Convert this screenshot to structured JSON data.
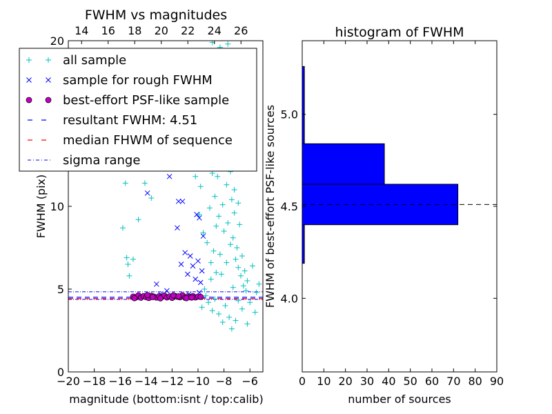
{
  "chart_data": [
    {
      "type": "scatter",
      "title": "FWHM vs magnitudes",
      "xlabel": "magnitude (bottom:isnt / top:calib)",
      "ylabel": "FWHM (pix)",
      "xlim": [
        -20,
        -5
      ],
      "ylim": [
        0,
        20
      ],
      "top_xlim": [
        13.0,
        27.65
      ],
      "xticks": [
        -20,
        -18,
        -16,
        -14,
        -12,
        -10,
        -8,
        -6
      ],
      "xtick_labels": [
        "−20",
        "−18",
        "−16",
        "−14",
        "−12",
        "−10",
        "−8",
        "−6"
      ],
      "yticks": [
        0,
        5,
        10,
        15,
        20
      ],
      "ytick_labels": [
        "0",
        "5",
        "10",
        "15",
        "20"
      ],
      "top_xticks": [
        14,
        16,
        18,
        20,
        22,
        24,
        26
      ],
      "top_xtick_labels": [
        "14",
        "16",
        "18",
        "20",
        "22",
        "24",
        "26"
      ],
      "grid": false,
      "legend_position": "top-left",
      "legend": [
        {
          "label": "all sample",
          "marker": "+",
          "color": "#00bfbf"
        },
        {
          "label": "sample for rough FWHM",
          "marker": "x",
          "color": "#0000ff"
        },
        {
          "label": "best-effort PSF-like sample",
          "marker": "o",
          "color": "#bf00bf"
        },
        {
          "label": "resultant FWHM: 4.51",
          "marker": "dashed",
          "color": "#0000ff"
        },
        {
          "label": "median FHWM of sequence",
          "marker": "dashed",
          "color": "#ff0000"
        },
        {
          "label": "sigma range",
          "marker": "dashdot",
          "color": "#0000ff"
        }
      ],
      "hlines": {
        "resultant_fwhm": 4.51,
        "median_fwhm": 4.51,
        "sigma_range": [
          4.38,
          4.84
        ]
      },
      "series": [
        {
          "name": "all sample",
          "marker": "+",
          "color": "#00bfbf",
          "points": [
            [
              -15.6,
              11.4
            ],
            [
              -15.8,
              8.7
            ],
            [
              -15.5,
              6.9
            ],
            [
              -15.4,
              6.5
            ],
            [
              -15.3,
              5.8
            ],
            [
              -15.0,
              6.8
            ],
            [
              -14.1,
              11.4
            ],
            [
              -14.6,
              9.2
            ],
            [
              -13.6,
              10.5
            ],
            [
              -12.2,
              12.4
            ],
            [
              -10.5,
              13.0
            ],
            [
              -10.2,
              11.8
            ],
            [
              -9.9,
              9.5
            ],
            [
              -9.8,
              11.2
            ],
            [
              -9.6,
              8.4
            ],
            [
              -9.3,
              7.8
            ],
            [
              -9.1,
              9.9
            ],
            [
              -9.0,
              6.6
            ],
            [
              -8.9,
              12.0
            ],
            [
              -8.8,
              7.3
            ],
            [
              -8.7,
              10.6
            ],
            [
              -8.6,
              6.0
            ],
            [
              -8.5,
              11.8
            ],
            [
              -8.4,
              9.4
            ],
            [
              -8.3,
              13.6
            ],
            [
              -8.2,
              12.8
            ],
            [
              -8.1,
              10.1
            ],
            [
              -8.0,
              8.5
            ],
            [
              -7.9,
              14.7
            ],
            [
              -7.8,
              11.3
            ],
            [
              -7.7,
              9.0
            ],
            [
              -7.6,
              13.2
            ],
            [
              -7.5,
              7.7
            ],
            [
              -7.4,
              10.4
            ],
            [
              -7.3,
              8.1
            ],
            [
              -7.2,
              9.6
            ],
            [
              -7.1,
              6.8
            ],
            [
              -7.0,
              7.5
            ],
            [
              -6.9,
              6.3
            ],
            [
              -6.8,
              8.9
            ],
            [
              -6.7,
              5.8
            ],
            [
              -6.6,
              7.0
            ],
            [
              -6.5,
              5.2
            ],
            [
              -6.4,
              6.1
            ],
            [
              -6.3,
              4.9
            ],
            [
              -6.2,
              5.5
            ],
            [
              -6.0,
              4.2
            ],
            [
              -5.8,
              6.4
            ],
            [
              -5.6,
              3.6
            ],
            [
              -5.5,
              4.8
            ],
            [
              -5.3,
              5.3
            ],
            [
              -8.9,
              19.9
            ],
            [
              -8.3,
              19.6
            ],
            [
              -8.0,
              19.3
            ],
            [
              -7.7,
              19.8
            ],
            [
              -8.5,
              17.5
            ],
            [
              -8.1,
              16.4
            ],
            [
              -7.9,
              17.9
            ],
            [
              -8.6,
              15.2
            ],
            [
              -7.4,
              16.0
            ],
            [
              -9.5,
              5.0
            ],
            [
              -9.4,
              4.6
            ],
            [
              -9.2,
              4.2
            ],
            [
              -8.9,
              3.7
            ],
            [
              -8.7,
              4.4
            ],
            [
              -8.4,
              3.5
            ],
            [
              -8.1,
              3.0
            ],
            [
              -7.9,
              4.0
            ],
            [
              -7.6,
              3.3
            ],
            [
              -7.4,
              2.6
            ],
            [
              -7.1,
              3.1
            ],
            [
              -6.9,
              4.3
            ],
            [
              -6.6,
              3.8
            ],
            [
              -6.2,
              2.9
            ],
            [
              -9.7,
              3.9
            ],
            [
              -9.0,
              5.6
            ],
            [
              -8.2,
              5.9
            ],
            [
              -7.3,
              5.1
            ],
            [
              -8.6,
              8.8
            ],
            [
              -8.3,
              7.1
            ],
            [
              -7.8,
              6.6
            ],
            [
              -7.5,
              12.1
            ],
            [
              -7.2,
              11.0
            ],
            [
              -6.9,
              10.2
            ],
            [
              -8.8,
              14.3
            ],
            [
              -8.4,
              15.7
            ],
            [
              -7.6,
              14.1
            ],
            [
              -7.3,
              15.0
            ],
            [
              -9.1,
              13.7
            ],
            [
              -8.0,
              18.4
            ]
          ]
        },
        {
          "name": "sample for rough FWHM",
          "marker": "x",
          "color": "#0000ff",
          "points": [
            [
              -13.9,
              10.8
            ],
            [
              -12.2,
              11.8
            ],
            [
              -11.5,
              10.3
            ],
            [
              -11.2,
              10.3
            ],
            [
              -10.1,
              9.5
            ],
            [
              -9.9,
              9.3
            ],
            [
              -11.0,
              7.2
            ],
            [
              -10.6,
              7.0
            ],
            [
              -10.4,
              6.4
            ],
            [
              -10.0,
              6.7
            ],
            [
              -9.7,
              6.1
            ],
            [
              -10.8,
              5.9
            ],
            [
              -10.2,
              5.6
            ],
            [
              -9.8,
              5.4
            ],
            [
              -9.6,
              8.2
            ],
            [
              -13.2,
              5.3
            ],
            [
              -11.6,
              8.7
            ],
            [
              -11.3,
              6.5
            ],
            [
              -12.4,
              4.9
            ],
            [
              -9.9,
              4.8
            ],
            [
              -10.7,
              4.7
            ],
            [
              -11.9,
              4.6
            ],
            [
              -12.9,
              4.7
            ]
          ]
        },
        {
          "name": "best-effort PSF-like sample",
          "marker": "o",
          "color": "#bf00bf",
          "points": [
            [
              -15.0,
              4.55
            ],
            [
              -14.8,
              4.5
            ],
            [
              -14.6,
              4.62
            ],
            [
              -14.4,
              4.48
            ],
            [
              -14.2,
              4.58
            ],
            [
              -14.0,
              4.52
            ],
            [
              -13.8,
              4.46
            ],
            [
              -13.6,
              4.6
            ],
            [
              -13.4,
              4.55
            ],
            [
              -13.2,
              4.49
            ],
            [
              -13.0,
              4.57
            ],
            [
              -12.8,
              4.53
            ],
            [
              -12.6,
              4.61
            ],
            [
              -12.4,
              4.5
            ],
            [
              -12.2,
              4.56
            ],
            [
              -12.0,
              4.47
            ],
            [
              -11.8,
              4.59
            ],
            [
              -11.6,
              4.54
            ],
            [
              -11.4,
              4.51
            ],
            [
              -11.2,
              4.63
            ],
            [
              -11.0,
              4.48
            ],
            [
              -10.8,
              4.56
            ],
            [
              -10.6,
              4.52
            ],
            [
              -10.4,
              4.58
            ],
            [
              -10.2,
              4.5
            ],
            [
              -10.0,
              4.55
            ],
            [
              -9.8,
              4.53
            ],
            [
              -14.9,
              4.45
            ],
            [
              -13.9,
              4.64
            ],
            [
              -12.9,
              4.44
            ],
            [
              -11.9,
              4.62
            ],
            [
              -10.9,
              4.45
            ],
            [
              -13.5,
              4.52
            ],
            [
              -11.5,
              4.57
            ],
            [
              -10.5,
              4.49
            ]
          ]
        }
      ]
    },
    {
      "type": "bar",
      "orientation": "horizontal",
      "title": "histogram of FWHM",
      "xlabel": "number of sources",
      "ylabel": "FWHM of best-effort PSF-like sources",
      "xlim": [
        0,
        90
      ],
      "ylim": [
        3.6,
        5.4
      ],
      "xticks": [
        0,
        10,
        20,
        30,
        40,
        50,
        60,
        70,
        80,
        90
      ],
      "xtick_labels": [
        "0",
        "10",
        "20",
        "30",
        "40",
        "50",
        "60",
        "70",
        "80",
        "90"
      ],
      "yticks": [
        4.0,
        4.5,
        5.0
      ],
      "ytick_labels": [
        "4.0",
        "4.5",
        "5.0"
      ],
      "color": "#0000ff",
      "bins": [
        {
          "y0": 4.19,
          "y1": 4.4,
          "count": 1
        },
        {
          "y0": 4.4,
          "y1": 4.62,
          "count": 72
        },
        {
          "y0": 4.62,
          "y1": 4.84,
          "count": 38
        },
        {
          "y0": 4.84,
          "y1": 5.26,
          "count": 1
        }
      ],
      "hline": 4.51
    }
  ]
}
